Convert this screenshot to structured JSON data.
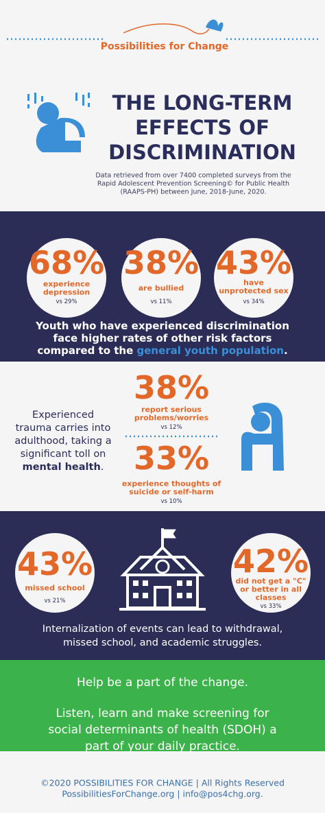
{
  "header": {
    "logo": "Possibilities for Change",
    "title": [
      "THE LONG-TERM",
      "EFFECTS OF",
      "DISCRIMINATION"
    ],
    "source": [
      "Data retrieved from over 7400 completed surveys from the",
      "Rapid Adolescent Prevention Screening© for Public Health",
      "(RAAPS-PH) between June, 2018-June, 2020."
    ]
  },
  "risk": {
    "stats": [
      {
        "percent": "68%",
        "label": [
          "experience",
          "depression"
        ],
        "compare": "vs 29%"
      },
      {
        "percent": "38%",
        "label": [
          "are bullied"
        ],
        "compare": "vs 11%"
      },
      {
        "percent": "43%",
        "label": [
          "have",
          "unprotected sex"
        ],
        "compare": "vs 34%"
      }
    ],
    "summary": [
      "Youth who have experienced discrimination",
      "face higher rates of other risk factors"
    ],
    "summary_end": "compared to the",
    "summary_link": "general youth population",
    "summary_period": "."
  },
  "mental": {
    "text": [
      "Experienced",
      "trauma carries into",
      "adulthood, taking a",
      "significant toll on"
    ],
    "emphasis": "mental health",
    "period": ".",
    "stats": [
      {
        "percent": "38%",
        "label": [
          "report serious",
          "problems/worries"
        ],
        "compare": "vs 12%"
      },
      {
        "percent": "33%",
        "label": [
          "experience thoughts of",
          "suicide or self-harm"
        ],
        "compare": "vs 10%"
      }
    ]
  },
  "school": {
    "stats": [
      {
        "percent": "43%",
        "label": [
          "missed school"
        ],
        "compare": "vs 21%"
      },
      {
        "percent": "42%",
        "label": [
          "did not get a \"C\"",
          "or better in all",
          "classes"
        ],
        "compare": "vs 33%"
      }
    ],
    "text": [
      "Internalization of events can lead to withdrawal,",
      "missed school, and academic struggles."
    ]
  },
  "cta": {
    "heading": "Help be a part of the change.",
    "text": [
      "Listen, learn and make screening for",
      "social determinants of health (SDOH) a",
      "part of your daily practice."
    ]
  },
  "footer": [
    "©2020 POSSIBILITIES FOR CHANGE | All Rights Reserved",
    "PossibilitiesForChange.org | info@pos4chg.org."
  ]
}
